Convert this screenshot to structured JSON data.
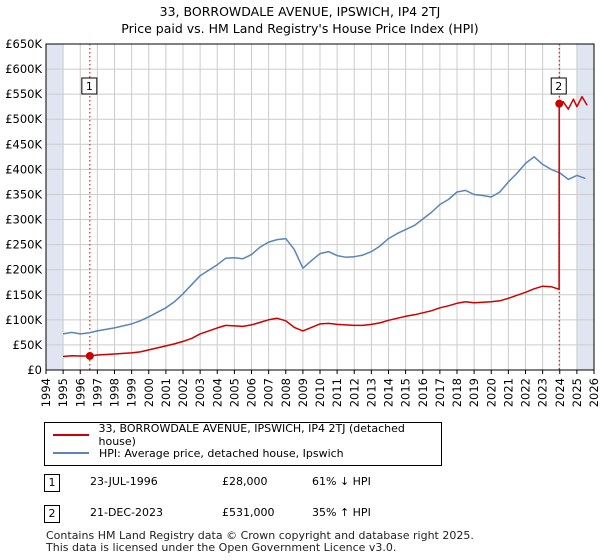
{
  "title_line1": "33, BORROWDALE AVENUE, IPSWICH, IP4 2TJ",
  "title_line2": "Price paid vs. HM Land Registry's House Price Index (HPI)",
  "colors": {
    "price_line": "#cc0000",
    "hpi_line": "#5b84b8",
    "shade": "#dfe6f2",
    "grid": "#cccccc",
    "marker_line": "#cc0000"
  },
  "legend": {
    "property_label": "33, BORROWDALE AVENUE, IPSWICH, IP4 2TJ (detached house)",
    "hpi_label": "HPI: Average price, detached house, Ipswich"
  },
  "annotations": [
    {
      "num": "1",
      "date": "23-JUL-1996",
      "price": "£28,000",
      "hpi": "61% ↓ HPI"
    },
    {
      "num": "2",
      "date": "21-DEC-2023",
      "price": "£531,000",
      "hpi": "35% ↑ HPI"
    }
  ],
  "footer": {
    "line1": "Contains HM Land Registry data © Crown copyright and database right 2025.",
    "line2": "This data is licensed under the Open Government Licence v3.0."
  },
  "chart_data": {
    "type": "line",
    "xlim": [
      1994,
      2026
    ],
    "ylim": [
      0,
      650000
    ],
    "x_ticks": [
      "1994",
      "1995",
      "1996",
      "1997",
      "1998",
      "1999",
      "2000",
      "2001",
      "2002",
      "2003",
      "2004",
      "2005",
      "2006",
      "2007",
      "2008",
      "2009",
      "2010",
      "2011",
      "2012",
      "2013",
      "2014",
      "2015",
      "2016",
      "2017",
      "2018",
      "2019",
      "2020",
      "2021",
      "2022",
      "2023",
      "2024",
      "2025",
      "2026"
    ],
    "y_ticks": [
      {
        "value": 0,
        "label": "£0"
      },
      {
        "value": 50000,
        "label": "£50K"
      },
      {
        "value": 100000,
        "label": "£100K"
      },
      {
        "value": 150000,
        "label": "£150K"
      },
      {
        "value": 200000,
        "label": "£200K"
      },
      {
        "value": 250000,
        "label": "£250K"
      },
      {
        "value": 300000,
        "label": "£300K"
      },
      {
        "value": 350000,
        "label": "£350K"
      },
      {
        "value": 400000,
        "label": "£400K"
      },
      {
        "value": 450000,
        "label": "£450K"
      },
      {
        "value": 500000,
        "label": "£500K"
      },
      {
        "value": 550000,
        "label": "£550K"
      },
      {
        "value": 600000,
        "label": "£600K"
      },
      {
        "value": 650000,
        "label": "£650K"
      }
    ],
    "shaded_ranges": [
      [
        1994,
        1995
      ],
      [
        2025,
        2026
      ]
    ],
    "markers": [
      {
        "label": "1",
        "x": 1996.56,
        "y": 28000
      },
      {
        "label": "2",
        "x": 2023.97,
        "y": 531000
      }
    ],
    "series": [
      {
        "name": "33, BORROWDALE AVENUE, IPSWICH, IP4 2TJ (detached house)",
        "x": [
          1995.0,
          1995.5,
          1996.0,
          1996.56,
          1997.0,
          1997.5,
          1998.0,
          1998.5,
          1999.0,
          1999.5,
          2000.0,
          2000.5,
          2001.0,
          2001.5,
          2002.0,
          2002.5,
          2003.0,
          2003.5,
          2004.0,
          2004.5,
          2005.0,
          2005.5,
          2006.0,
          2006.5,
          2007.0,
          2007.5,
          2008.0,
          2008.5,
          2009.0,
          2009.5,
          2010.0,
          2010.5,
          2011.0,
          2011.5,
          2012.0,
          2012.5,
          2013.0,
          2013.5,
          2014.0,
          2014.5,
          2015.0,
          2015.5,
          2016.0,
          2016.5,
          2017.0,
          2017.5,
          2018.0,
          2018.5,
          2019.0,
          2019.5,
          2020.0,
          2020.5,
          2021.0,
          2021.5,
          2022.0,
          2022.5,
          2023.0,
          2023.5,
          2023.96,
          2023.97,
          2024.2,
          2024.5,
          2024.8,
          2025.0,
          2025.3,
          2025.6
        ],
        "values": [
          27000,
          28500,
          28000,
          28000,
          30000,
          31000,
          32000,
          33000,
          34000,
          36000,
          40000,
          44000,
          48000,
          52000,
          57000,
          63000,
          72000,
          78000,
          84000,
          89000,
          88000,
          87000,
          90000,
          95000,
          100000,
          103000,
          98000,
          85000,
          78000,
          85000,
          92000,
          93000,
          91000,
          90000,
          89000,
          89000,
          91000,
          94000,
          99000,
          103000,
          107000,
          110000,
          114000,
          118000,
          124000,
          128000,
          133000,
          136000,
          134000,
          135000,
          136000,
          138000,
          143000,
          149000,
          155000,
          162000,
          167000,
          166000,
          161000,
          531000,
          535000,
          520000,
          540000,
          525000,
          545000,
          528000
        ]
      },
      {
        "name": "HPI: Average price, detached house, Ipswich",
        "x": [
          1995.0,
          1995.5,
          1996.0,
          1996.5,
          1997.0,
          1997.5,
          1998.0,
          1998.5,
          1999.0,
          1999.5,
          2000.0,
          2000.5,
          2001.0,
          2001.5,
          2002.0,
          2002.5,
          2003.0,
          2003.5,
          2004.0,
          2004.5,
          2005.0,
          2005.5,
          2006.0,
          2006.5,
          2007.0,
          2007.5,
          2008.0,
          2008.5,
          2009.0,
          2009.5,
          2010.0,
          2010.5,
          2011.0,
          2011.5,
          2012.0,
          2012.5,
          2013.0,
          2013.5,
          2014.0,
          2014.5,
          2015.0,
          2015.5,
          2016.0,
          2016.5,
          2017.0,
          2017.5,
          2018.0,
          2018.5,
          2019.0,
          2019.5,
          2020.0,
          2020.5,
          2021.0,
          2021.5,
          2022.0,
          2022.5,
          2023.0,
          2023.5,
          2024.0,
          2024.5,
          2025.0,
          2025.5
        ],
        "values": [
          72000,
          75000,
          72000,
          74000,
          78000,
          81000,
          84000,
          88000,
          92000,
          98000,
          106000,
          115000,
          124000,
          136000,
          152000,
          170000,
          188000,
          199000,
          210000,
          223000,
          224000,
          222000,
          230000,
          245000,
          255000,
          260000,
          262000,
          240000,
          203000,
          218000,
          232000,
          236000,
          228000,
          225000,
          226000,
          229000,
          236000,
          247000,
          262000,
          272000,
          280000,
          288000,
          301000,
          314000,
          330000,
          340000,
          355000,
          358000,
          350000,
          348000,
          345000,
          355000,
          375000,
          392000,
          412000,
          425000,
          410000,
          400000,
          393000,
          380000,
          388000,
          382000
        ]
      }
    ]
  }
}
